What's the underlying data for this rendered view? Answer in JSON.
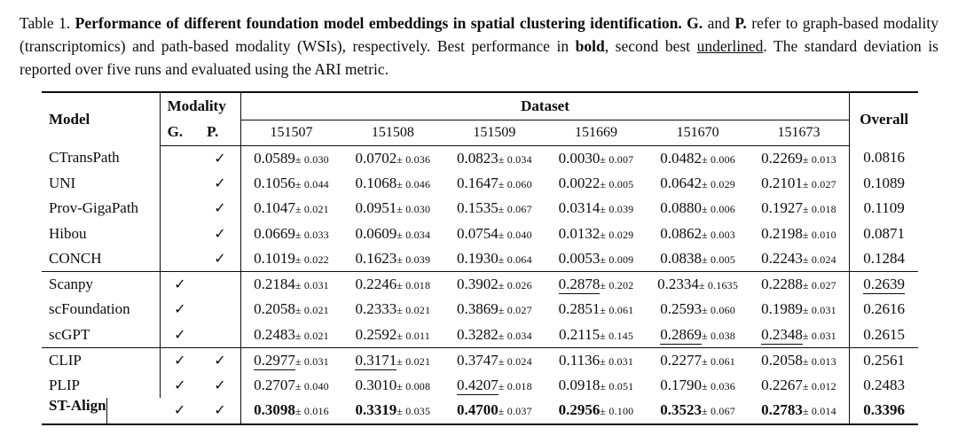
{
  "colors": {
    "text": "#0d0d0d",
    "background": "#ffffff",
    "rule": "#0d0d0d"
  },
  "caption": {
    "segments": [
      {
        "text": "Table 1. ",
        "style": "normal"
      },
      {
        "text": "Performance of different foundation model embeddings in spatial clustering identification. ",
        "style": "bold"
      },
      {
        "text": "G.",
        "style": "bold"
      },
      {
        "text": " and ",
        "style": "normal"
      },
      {
        "text": "P.",
        "style": "bold"
      },
      {
        "text": " refer to graph-based modality (transcriptomics) and path-based modality (WSIs), respectively. Best performance in ",
        "style": "normal"
      },
      {
        "text": "bold",
        "style": "bold"
      },
      {
        "text": ", second best ",
        "style": "normal"
      },
      {
        "text": "underlined",
        "style": "underline"
      },
      {
        "text": ". The standard deviation is reported over five runs and evaluated using the ARI metric.",
        "style": "normal"
      }
    ]
  },
  "table": {
    "checkmark": "✓",
    "header": {
      "model_label": "Model",
      "modality_label": "Modality",
      "modality_sub": [
        "G.",
        "P."
      ],
      "dataset_label": "Dataset",
      "dataset_columns": [
        "151507",
        "151508",
        "151509",
        "151669",
        "151670",
        "151673"
      ],
      "overall_label": "Overall"
    },
    "metric": "ARI",
    "groups": [
      {
        "name": "path-based-models",
        "rows": [
          {
            "model": "CTransPath",
            "model_bold": false,
            "g": false,
            "p": true,
            "cells": [
              {
                "value": "0.0589",
                "std": "0.030",
                "style": "normal"
              },
              {
                "value": "0.0702",
                "std": "0.036",
                "style": "normal"
              },
              {
                "value": "0.0823",
                "std": "0.034",
                "style": "normal"
              },
              {
                "value": "0.0030",
                "std": "0.007",
                "style": "normal"
              },
              {
                "value": "0.0482",
                "std": "0.006",
                "style": "normal"
              },
              {
                "value": "0.2269",
                "std": "0.013",
                "style": "normal"
              }
            ],
            "overall": {
              "value": "0.0816",
              "style": "normal"
            }
          },
          {
            "model": "UNI",
            "model_bold": false,
            "g": false,
            "p": true,
            "cells": [
              {
                "value": "0.1056",
                "std": "0.044",
                "style": "normal"
              },
              {
                "value": "0.1068",
                "std": "0.046",
                "style": "normal"
              },
              {
                "value": "0.1647",
                "std": "0.060",
                "style": "normal"
              },
              {
                "value": "0.0022",
                "std": "0.005",
                "style": "normal"
              },
              {
                "value": "0.0642",
                "std": "0.029",
                "style": "normal"
              },
              {
                "value": "0.2101",
                "std": "0.027",
                "style": "normal"
              }
            ],
            "overall": {
              "value": "0.1089",
              "style": "normal"
            }
          },
          {
            "model": "Prov-GigaPath",
            "model_bold": false,
            "g": false,
            "p": true,
            "cells": [
              {
                "value": "0.1047",
                "std": "0.021",
                "style": "normal"
              },
              {
                "value": "0.0951",
                "std": "0.030",
                "style": "normal"
              },
              {
                "value": "0.1535",
                "std": "0.067",
                "style": "normal"
              },
              {
                "value": "0.0314",
                "std": "0.039",
                "style": "normal"
              },
              {
                "value": "0.0880",
                "std": "0.006",
                "style": "normal"
              },
              {
                "value": "0.1927",
                "std": "0.018",
                "style": "normal"
              }
            ],
            "overall": {
              "value": "0.1109",
              "style": "normal"
            }
          },
          {
            "model": "Hibou",
            "model_bold": false,
            "g": false,
            "p": true,
            "cells": [
              {
                "value": "0.0669",
                "std": "0.033",
                "style": "normal"
              },
              {
                "value": "0.0609",
                "std": "0.034",
                "style": "normal"
              },
              {
                "value": "0.0754",
                "std": "0.040",
                "style": "normal"
              },
              {
                "value": "0.0132",
                "std": "0.029",
                "style": "normal"
              },
              {
                "value": "0.0862",
                "std": "0.003",
                "style": "normal"
              },
              {
                "value": "0.2198",
                "std": "0.010",
                "style": "normal"
              }
            ],
            "overall": {
              "value": "0.0871",
              "style": "normal"
            }
          },
          {
            "model": "CONCH",
            "model_bold": false,
            "g": false,
            "p": true,
            "cells": [
              {
                "value": "0.1019",
                "std": "0.022",
                "style": "normal"
              },
              {
                "value": "0.1623",
                "std": "0.039",
                "style": "normal"
              },
              {
                "value": "0.1930",
                "std": "0.064",
                "style": "normal"
              },
              {
                "value": "0.0053",
                "std": "0.009",
                "style": "normal"
              },
              {
                "value": "0.0838",
                "std": "0.005",
                "style": "normal"
              },
              {
                "value": "0.2243",
                "std": "0.024",
                "style": "normal"
              }
            ],
            "overall": {
              "value": "0.1284",
              "style": "normal"
            }
          }
        ]
      },
      {
        "name": "graph-based-models",
        "rows": [
          {
            "model": "Scanpy",
            "model_bold": false,
            "g": true,
            "p": false,
            "cells": [
              {
                "value": "0.2184",
                "std": "0.031",
                "style": "normal"
              },
              {
                "value": "0.2246",
                "std": "0.018",
                "style": "normal"
              },
              {
                "value": "0.3902",
                "std": "0.026",
                "style": "normal"
              },
              {
                "value": "0.2878",
                "std": "0.202",
                "style": "underline"
              },
              {
                "value": "0.2334",
                "std": "0.1635",
                "style": "normal"
              },
              {
                "value": "0.2288",
                "std": "0.027",
                "style": "normal"
              }
            ],
            "overall": {
              "value": "0.2639",
              "style": "underline"
            }
          },
          {
            "model": "scFoundation",
            "model_bold": false,
            "g": true,
            "p": false,
            "cells": [
              {
                "value": "0.2058",
                "std": "0.021",
                "style": "normal"
              },
              {
                "value": "0.2333",
                "std": "0.021",
                "style": "normal"
              },
              {
                "value": "0.3869",
                "std": "0.027",
                "style": "normal"
              },
              {
                "value": "0.2851",
                "std": "0.061",
                "style": "normal"
              },
              {
                "value": "0.2593",
                "std": "0.060",
                "style": "normal"
              },
              {
                "value": "0.1989",
                "std": "0.031",
                "style": "normal"
              }
            ],
            "overall": {
              "value": "0.2616",
              "style": "normal"
            }
          },
          {
            "model": "scGPT",
            "model_bold": false,
            "g": true,
            "p": false,
            "cells": [
              {
                "value": "0.2483",
                "std": "0.021",
                "style": "normal"
              },
              {
                "value": "0.2592",
                "std": "0.011",
                "style": "normal"
              },
              {
                "value": "0.3282",
                "std": "0.034",
                "style": "normal"
              },
              {
                "value": "0.2115",
                "std": "0.145",
                "style": "normal"
              },
              {
                "value": "0.2869",
                "std": "0.038",
                "style": "underline"
              },
              {
                "value": "0.2348",
                "std": "0.031",
                "style": "underline"
              }
            ],
            "overall": {
              "value": "0.2615",
              "style": "normal"
            }
          }
        ]
      },
      {
        "name": "multimodal-models",
        "rows": [
          {
            "model": "CLIP",
            "model_bold": false,
            "g": true,
            "p": true,
            "cells": [
              {
                "value": "0.2977",
                "std": "0.031",
                "style": "underline"
              },
              {
                "value": "0.3171",
                "std": "0.021",
                "style": "underline"
              },
              {
                "value": "0.3747",
                "std": "0.024",
                "style": "normal"
              },
              {
                "value": "0.1136",
                "std": "0.031",
                "style": "normal"
              },
              {
                "value": "0.2277",
                "std": "0.061",
                "style": "normal"
              },
              {
                "value": "0.2058",
                "std": "0.013",
                "style": "normal"
              }
            ],
            "overall": {
              "value": "0.2561",
              "style": "normal"
            }
          },
          {
            "model": "PLIP",
            "model_bold": false,
            "g": true,
            "p": true,
            "cells": [
              {
                "value": "0.2707",
                "std": "0.040",
                "style": "normal"
              },
              {
                "value": "0.3010",
                "std": "0.008",
                "style": "normal"
              },
              {
                "value": "0.4207",
                "std": "0.018",
                "style": "underline"
              },
              {
                "value": "0.0918",
                "std": "0.051",
                "style": "normal"
              },
              {
                "value": "0.1790",
                "std": "0.036",
                "style": "normal"
              },
              {
                "value": "0.2267",
                "std": "0.012",
                "style": "normal"
              }
            ],
            "overall": {
              "value": "0.2483",
              "style": "normal"
            }
          },
          {
            "model": "ST-Align",
            "model_bold": true,
            "g": true,
            "p": true,
            "cells": [
              {
                "value": "0.3098",
                "std": "0.016",
                "style": "bold"
              },
              {
                "value": "0.3319",
                "std": "0.035",
                "style": "bold"
              },
              {
                "value": "0.4700",
                "std": "0.037",
                "style": "bold"
              },
              {
                "value": "0.2956",
                "std": "0.100",
                "style": "bold"
              },
              {
                "value": "0.3523",
                "std": "0.067",
                "style": "bold"
              },
              {
                "value": "0.2783",
                "std": "0.014",
                "style": "bold"
              }
            ],
            "overall": {
              "value": "0.3396",
              "style": "bold"
            }
          }
        ]
      }
    ]
  }
}
